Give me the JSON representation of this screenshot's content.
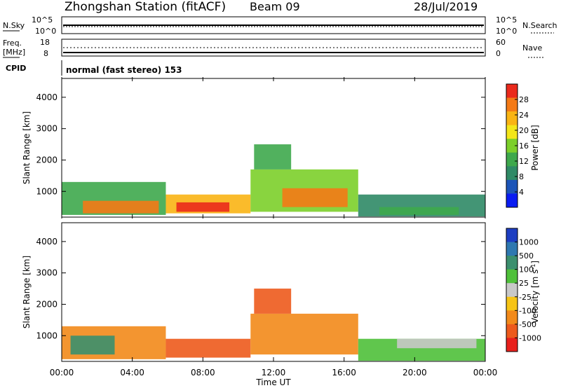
{
  "header": {
    "title": "Zhongshan Station (fitACF)",
    "beam": "Beam 09",
    "date": "28/Jul/2019"
  },
  "panels": {
    "nsky": {
      "label": "N.Sky",
      "ticks": [
        "10^5",
        "10^0"
      ],
      "right_ticks": [
        "10^5",
        "10^0"
      ],
      "right_label": "N.Search"
    },
    "freq": {
      "label_line1": "Freq.",
      "label_line2": "[MHz]",
      "ticks": [
        "18",
        "8"
      ],
      "right_ticks": [
        "60",
        "0"
      ],
      "right_label": "Nave"
    },
    "cpid": {
      "label": "CPID",
      "text": "normal (fast stereo) 153"
    }
  },
  "chart_data": [
    {
      "type": "heatmap",
      "name": "power",
      "xlabel": "Time UT",
      "ylabel": "Slant Range [km]",
      "xlim": [
        0,
        24
      ],
      "ylim": [
        180,
        4600
      ],
      "y_ticks": [
        1000,
        2000,
        3000,
        4000
      ],
      "colorbar_label": "Power [dB]",
      "colorbar_ticks": [
        "4",
        "8",
        "12",
        "16",
        "20",
        "24",
        "28"
      ],
      "colorbar_values": [
        4,
        8,
        12,
        16,
        20,
        24,
        28
      ],
      "colorbar_range": [
        0,
        32
      ],
      "colorbar_colors": [
        "#0a1cf2",
        "#1c55b8",
        "#2f8a66",
        "#3ea84c",
        "#7ccf2a",
        "#f3e61a",
        "#f9b414",
        "#f47a16",
        "#ea2a1c"
      ],
      "cells": [
        {
          "t0": 0.0,
          "t1": 5.9,
          "r0": 250,
          "r1": 1300,
          "level": 14
        },
        {
          "t0": 1.2,
          "t1": 5.5,
          "r0": 300,
          "r1": 700,
          "level": 26
        },
        {
          "t0": 5.9,
          "t1": 10.7,
          "r0": 300,
          "r1": 900,
          "level": 24
        },
        {
          "t0": 6.5,
          "t1": 9.5,
          "r0": 350,
          "r1": 650,
          "level": 29
        },
        {
          "t0": 10.7,
          "t1": 16.8,
          "r0": 350,
          "r1": 1700,
          "level": 16
        },
        {
          "t0": 12.5,
          "t1": 16.2,
          "r0": 500,
          "r1": 1100,
          "level": 28
        },
        {
          "t0": 10.9,
          "t1": 13.0,
          "r0": 1700,
          "r1": 2500,
          "level": 12
        },
        {
          "t0": 16.8,
          "t1": 24.0,
          "r0": 200,
          "r1": 900,
          "level": 8
        },
        {
          "t0": 18.0,
          "t1": 22.5,
          "r0": 250,
          "r1": 500,
          "level": 14
        }
      ]
    },
    {
      "type": "heatmap",
      "name": "velocity",
      "xlabel": "Time UT",
      "ylabel": "Slant Range [km]",
      "xlim": [
        0,
        24
      ],
      "ylim": [
        180,
        4600
      ],
      "y_ticks": [
        1000,
        2000,
        3000,
        4000
      ],
      "x_ticks": [
        "00:00",
        "04:00",
        "08:00",
        "12:00",
        "16:00",
        "20:00",
        "00:00"
      ],
      "colorbar_label": "Velocity [m s^-1]",
      "colorbar_ticks": [
        "1000",
        "500",
        "100",
        "25",
        "-25",
        "-100",
        "-500",
        "-1000"
      ],
      "colorbar_colors": [
        "#1d3ec2",
        "#2e78b0",
        "#3b8f6e",
        "#4fc03a",
        "#c8c8c8",
        "#f6c416",
        "#f28a1a",
        "#ed5a1c",
        "#e8201c"
      ],
      "cells": [
        {
          "t0": 0.0,
          "t1": 5.9,
          "r0": 250,
          "r1": 1300,
          "level": "-100"
        },
        {
          "t0": 0.5,
          "t1": 3.0,
          "r0": 400,
          "r1": 1000,
          "level": "500"
        },
        {
          "t0": 5.9,
          "t1": 10.7,
          "r0": 300,
          "r1": 900,
          "level": "-500"
        },
        {
          "t0": 10.7,
          "t1": 16.8,
          "r0": 400,
          "r1": 1700,
          "level": "-100"
        },
        {
          "t0": 10.9,
          "t1": 13.0,
          "r0": 1700,
          "r1": 2500,
          "level": "-500"
        },
        {
          "t0": 16.8,
          "t1": 24.0,
          "r0": 200,
          "r1": 900,
          "level": "100"
        },
        {
          "t0": 19.0,
          "t1": 23.5,
          "r0": 600,
          "r1": 900,
          "level": "25"
        }
      ]
    }
  ]
}
